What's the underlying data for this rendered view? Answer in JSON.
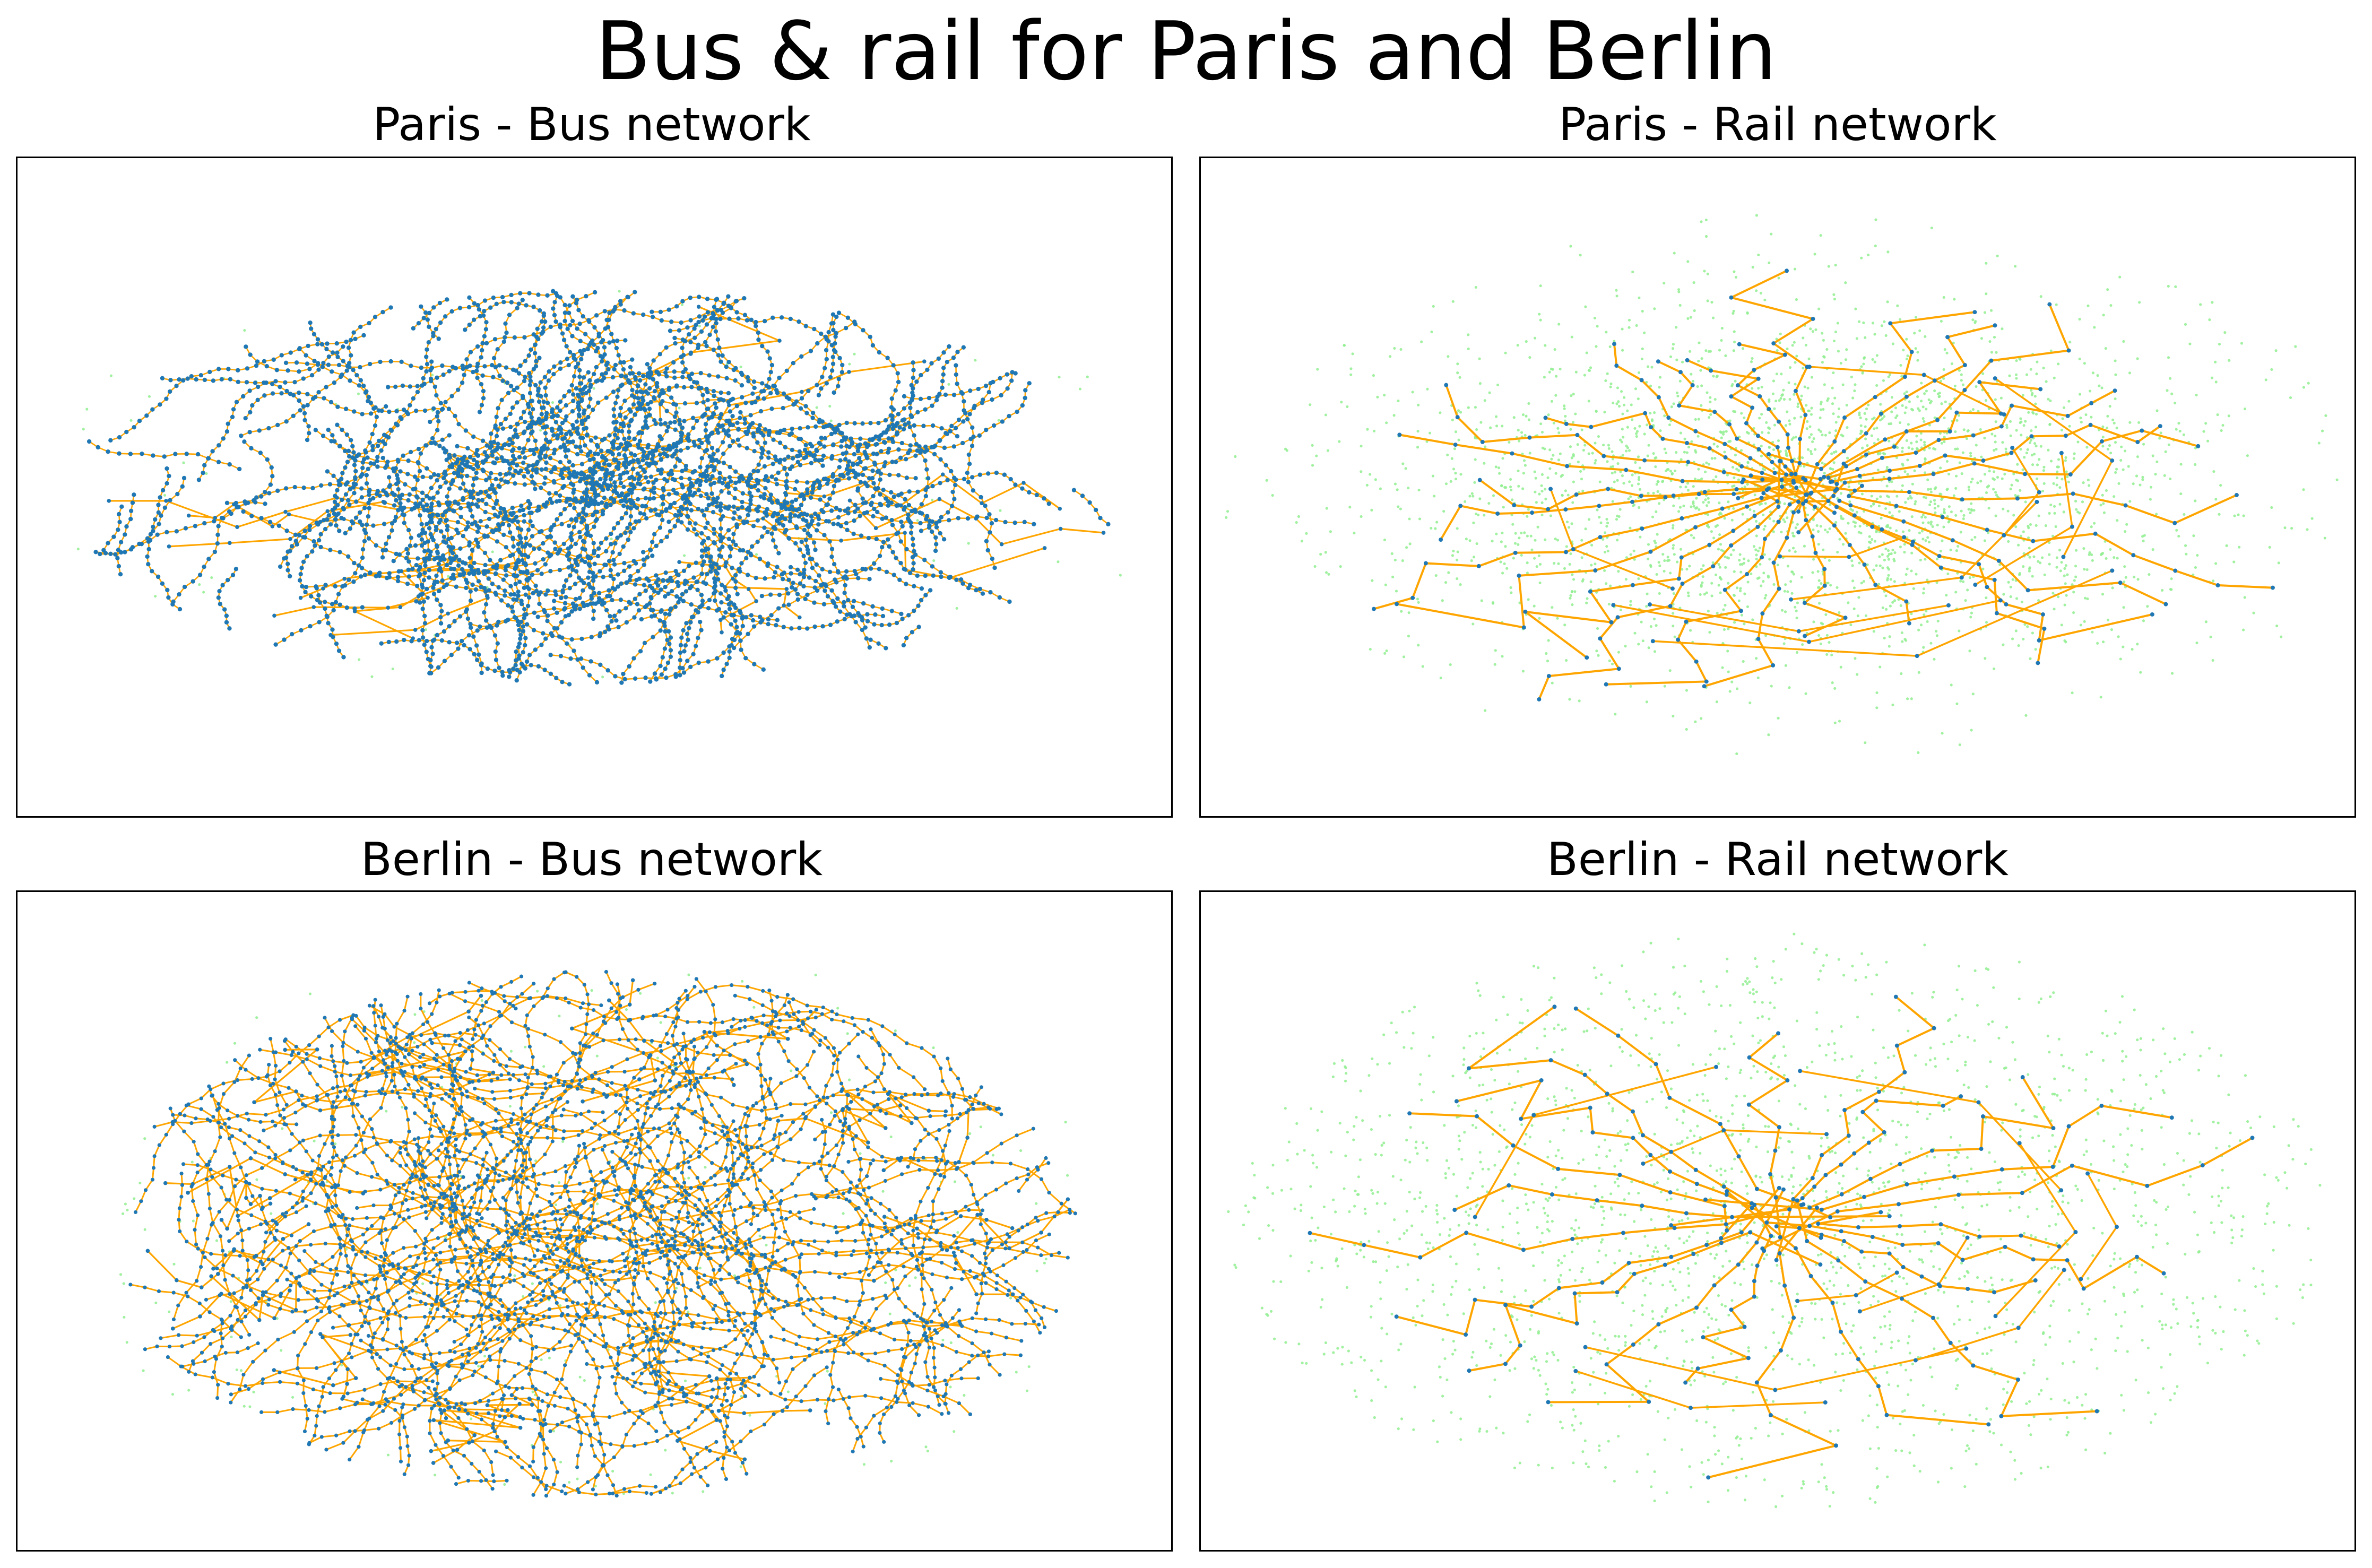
{
  "title": "Bus & rail for Paris and Berlin",
  "colors": {
    "edge": "#ffa500",
    "node": "#1f77b4",
    "background_stops": "#90ee90"
  },
  "chart_data": [
    {
      "type": "network",
      "title": "Paris - Bus network",
      "city": "Paris",
      "highlighted": "bus",
      "axes": "off",
      "center": [
        0.5,
        0.5
      ],
      "spread": [
        0.46,
        0.3
      ],
      "cluster_spread": [
        0.17,
        0.13
      ],
      "layers": [
        "rail stops (light green, sparse)",
        "bus routes (orange edges)",
        "bus stops (blue nodes, dense)"
      ]
    },
    {
      "type": "network",
      "title": "Paris - Rail network",
      "city": "Paris",
      "highlighted": "rail",
      "axes": "off",
      "center": [
        0.52,
        0.5
      ],
      "spread": [
        0.46,
        0.38
      ],
      "cluster_spread": [
        0.18,
        0.14
      ],
      "layers": [
        "bus stops (light green, dense)",
        "rail lines (orange edges)",
        "rail stations (blue nodes)"
      ]
    },
    {
      "type": "network",
      "title": "Berlin - Bus network",
      "city": "Berlin",
      "highlighted": "bus",
      "axes": "off",
      "center": [
        0.5,
        0.52
      ],
      "spread": [
        0.42,
        0.4
      ],
      "cluster_spread": [
        0.28,
        0.24
      ],
      "layers": [
        "rail stops (light green)",
        "bus routes (orange edges)",
        "bus stops (blue nodes)"
      ]
    },
    {
      "type": "network",
      "title": "Berlin - Rail network",
      "city": "Berlin",
      "highlighted": "rail",
      "axes": "off",
      "center": [
        0.5,
        0.5
      ],
      "spread": [
        0.44,
        0.4
      ],
      "cluster_spread": [
        0.28,
        0.24
      ],
      "layers": [
        "bus stops (light green, dense)",
        "rail lines (orange edges)",
        "rail stations (blue nodes)"
      ]
    }
  ]
}
